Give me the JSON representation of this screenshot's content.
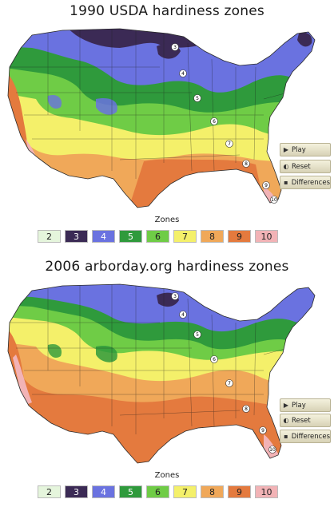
{
  "panels": [
    {
      "title": "1990 USDA hardiness zones",
      "zones_label": "Zones",
      "markers": [
        "3",
        "4",
        "5",
        "6",
        "7",
        "8",
        "9",
        "10"
      ],
      "controls": {
        "play": "Play",
        "reset": "Reset",
        "differences": "Differences"
      }
    },
    {
      "title": "2006 arborday.org hardiness zones",
      "zones_label": "Zones",
      "markers": [
        "3",
        "4",
        "5",
        "6",
        "7",
        "8",
        "9",
        "10"
      ],
      "controls": {
        "play": "Play",
        "reset": "Reset",
        "differences": "Differences"
      }
    }
  ],
  "legend": [
    {
      "zone": "2",
      "color": "#e5f5dc",
      "text_color": "#222222"
    },
    {
      "zone": "3",
      "color": "#3b2a55",
      "text_color": "#ffffff"
    },
    {
      "zone": "4",
      "color": "#6a72e0",
      "text_color": "#ffffff"
    },
    {
      "zone": "5",
      "color": "#2f9a3c",
      "text_color": "#ffffff"
    },
    {
      "zone": "6",
      "color": "#6fcc46",
      "text_color": "#222222"
    },
    {
      "zone": "7",
      "color": "#f4f06a",
      "text_color": "#222222"
    },
    {
      "zone": "8",
      "color": "#f0a859",
      "text_color": "#222222"
    },
    {
      "zone": "9",
      "color": "#e47a3e",
      "text_color": "#222222"
    },
    {
      "zone": "10",
      "color": "#f2b3b6",
      "text_color": "#222222"
    }
  ],
  "icons": {
    "play": "play-icon",
    "reset": "reset-icon",
    "differences": "differences-icon"
  }
}
